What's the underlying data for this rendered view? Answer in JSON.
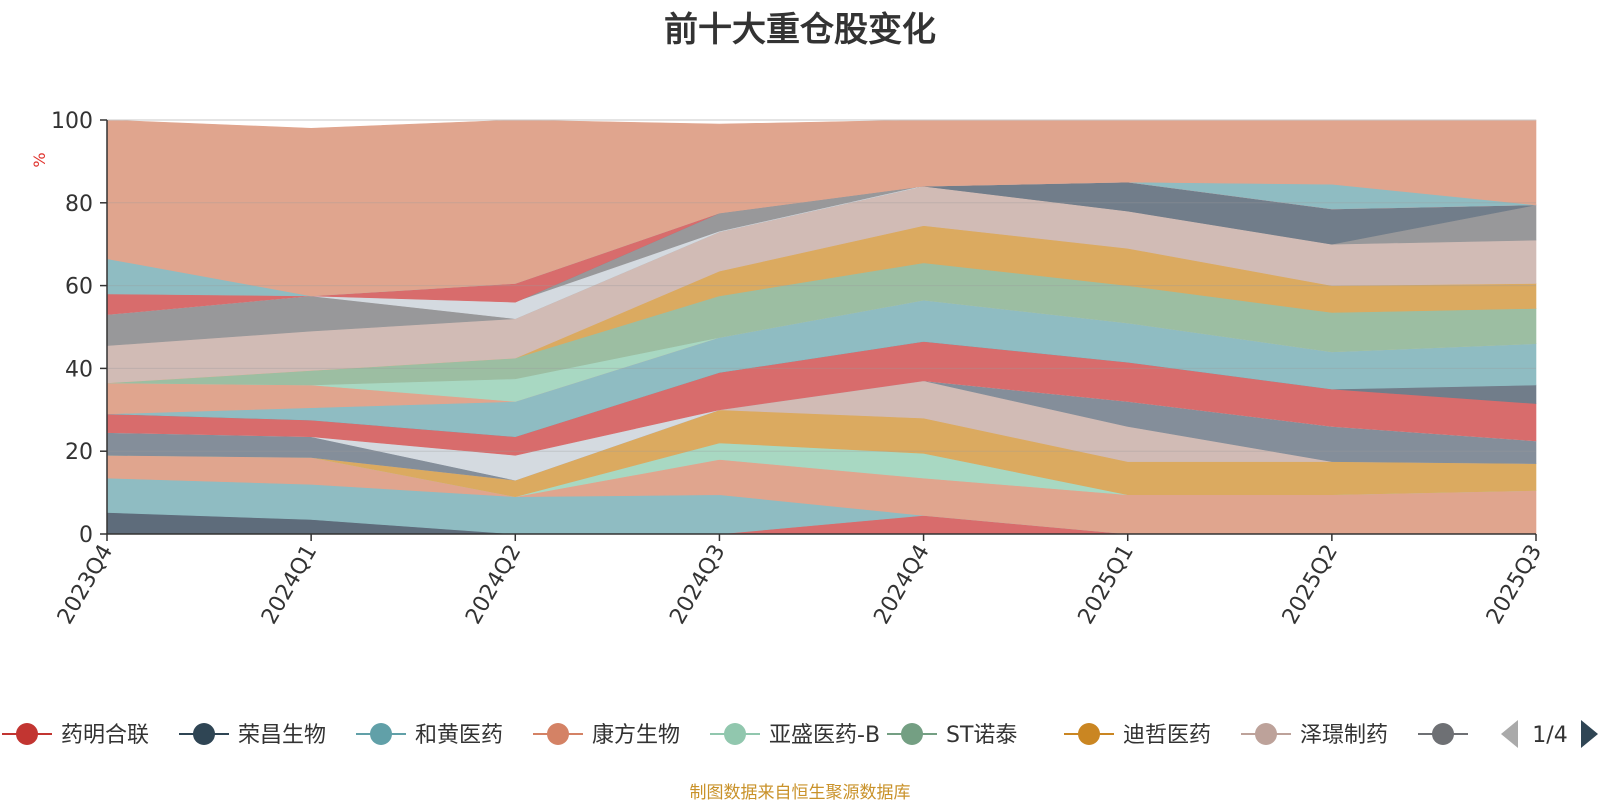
{
  "chart_data": {
    "type": "area",
    "title": "前十大重仓股变化",
    "ylabel": "%",
    "ylim": [
      0,
      100
    ],
    "y_ticks": [
      "0",
      "20",
      "40",
      "60",
      "80",
      "100"
    ],
    "categories": [
      "2023Q4",
      "2024Q1",
      "2024Q2",
      "2024Q3",
      "2024Q4",
      "2025Q1",
      "2025Q2",
      "2025Q3"
    ],
    "bands": [
      {
        "color": "#5e6c7b",
        "lower": [
          0,
          0,
          0,
          0,
          0,
          0,
          0,
          0
        ],
        "upper": [
          5.2,
          3.5,
          0,
          0,
          0,
          0,
          0,
          0
        ]
      },
      {
        "color": "#d86c6c",
        "lower": [
          0,
          0,
          0,
          0,
          0,
          0,
          0,
          0
        ],
        "upper": [
          0,
          0,
          0,
          0,
          4.5,
          0,
          0,
          0
        ]
      },
      {
        "color": "#8fbcc2",
        "lower": [
          5.2,
          3.5,
          0,
          0,
          4.5,
          0,
          0,
          0
        ],
        "upper": [
          13.5,
          12,
          9,
          9.5,
          4.5,
          0,
          0,
          0
        ]
      },
      {
        "color": "#e0a58e",
        "lower": [
          13.5,
          12,
          9,
          9.5,
          4.5,
          0,
          0,
          0
        ],
        "upper": [
          19,
          18.5,
          9,
          18,
          13.5,
          9.5,
          9.5,
          10.5
        ]
      },
      {
        "color": "#a8d8c2",
        "lower": [
          19,
          18.5,
          9,
          18,
          13.5,
          9.5,
          9.5,
          10.5
        ],
        "upper": [
          19,
          18.5,
          9,
          22,
          19.5,
          9.5,
          9.5,
          10.5
        ]
      },
      {
        "color": "#dbaa60",
        "lower": [
          19,
          18.5,
          9,
          22,
          19.5,
          9.5,
          9.5,
          10.5
        ],
        "upper": [
          19,
          18.5,
          13,
          30,
          28,
          17.5,
          17.5,
          17
        ]
      },
      {
        "color": "#d1bbb5",
        "lower": [
          19,
          18.5,
          13,
          30,
          28,
          17.5,
          17.5,
          17
        ],
        "upper": [
          19,
          18.5,
          13,
          30,
          37,
          26,
          17.5,
          17
        ]
      },
      {
        "color": "#848e9a",
        "lower": [
          19,
          18.5,
          13,
          30,
          37,
          26,
          17.5,
          17
        ],
        "upper": [
          24.5,
          23.5,
          13,
          30,
          37,
          32,
          26,
          22.5
        ]
      },
      {
        "color": "#d4dae0",
        "lower": [
          24.5,
          23.5,
          13,
          30,
          37,
          32,
          26,
          22.5
        ],
        "upper": [
          24.5,
          23.5,
          19,
          30,
          37,
          32,
          26,
          22.5
        ]
      },
      {
        "color": "#d86c6c",
        "lower": [
          24.5,
          23.5,
          19,
          30,
          37,
          32,
          26,
          22.5
        ],
        "upper": [
          29,
          27.5,
          23.5,
          39,
          46.5,
          41.5,
          35,
          31.5
        ]
      },
      {
        "color": "#717d8a",
        "lower": [
          29,
          27.5,
          23.5,
          39,
          46.5,
          41.5,
          35,
          31.5
        ],
        "upper": [
          29,
          27.5,
          23.5,
          39,
          46.5,
          41.5,
          35,
          36
        ]
      },
      {
        "color": "#8fbcc2",
        "lower": [
          29,
          27.5,
          23.5,
          39,
          46.5,
          41.5,
          35,
          36
        ],
        "upper": [
          29,
          30.5,
          32,
          47.5,
          56.5,
          51,
          44,
          46
        ]
      },
      {
        "color": "#e0a58e",
        "lower": [
          29,
          30.5,
          32,
          47.5,
          56.5,
          51,
          44,
          46
        ],
        "upper": [
          36.5,
          36,
          32,
          47.5,
          56.5,
          51,
          44,
          46
        ]
      },
      {
        "color": "#a8d8c2",
        "lower": [
          36.5,
          36,
          32,
          47.5,
          56.5,
          51,
          44,
          46
        ],
        "upper": [
          36.5,
          36,
          37.5,
          47.5,
          56.5,
          51,
          44,
          46
        ]
      },
      {
        "color": "#9cbea2",
        "lower": [
          36.5,
          36,
          37.5,
          47.5,
          56.5,
          51,
          44,
          46
        ],
        "upper": [
          36.5,
          39.5,
          42.5,
          57.5,
          65.5,
          60,
          53.5,
          54.5
        ]
      },
      {
        "color": "#dbaa60",
        "lower": [
          36.5,
          39.5,
          42.5,
          57.5,
          65.5,
          60,
          53.5,
          54.5
        ],
        "upper": [
          36.5,
          39.5,
          42.5,
          63.5,
          74.5,
          69,
          60,
          60.5
        ]
      },
      {
        "color": "#d1bbb5",
        "lower": [
          36.5,
          39.5,
          42.5,
          63.5,
          74.5,
          69,
          60,
          60.5
        ],
        "upper": [
          45.5,
          49,
          52,
          73,
          84,
          78,
          70,
          71
        ]
      },
      {
        "color": "#98989a",
        "lower": [
          45.5,
          49,
          52,
          73,
          84,
          78,
          70,
          71
        ],
        "upper": [
          53,
          57.5,
          56,
          77.5,
          84,
          78,
          70,
          79.5
        ]
      },
      {
        "color": "#717d8a",
        "lower": [
          53,
          57.5,
          56,
          77.5,
          84,
          78,
          70,
          79.5
        ],
        "upper": [
          53,
          57.5,
          56,
          77.5,
          84,
          85,
          78.5,
          79.5
        ]
      },
      {
        "color": "#d4dae0",
        "lower": [
          53,
          57.5,
          52,
          73,
          84,
          85,
          78.5,
          79.5
        ],
        "upper": [
          53,
          57.5,
          56,
          73,
          84,
          85,
          78.5,
          79.5
        ]
      },
      {
        "color": "#d86c6c",
        "lower": [
          53,
          57.5,
          56,
          77.5,
          84,
          85,
          78.5,
          79.5
        ],
        "upper": [
          58,
          57.5,
          60.5,
          77.5,
          84,
          85,
          78.5,
          79.5
        ]
      },
      {
        "color": "#8fbcc2",
        "lower": [
          58,
          57.5,
          60.5,
          77.5,
          84,
          85,
          78.5,
          79.5
        ],
        "upper": [
          66.5,
          57.5,
          60.5,
          77.5,
          84,
          85,
          84.5,
          79.5
        ]
      },
      {
        "color": "#e0a58e",
        "lower": [
          66.5,
          57.5,
          60.5,
          77.5,
          84,
          85,
          84.5,
          79.5
        ],
        "upper": [
          100,
          98,
          100,
          99,
          100,
          100,
          100,
          100
        ]
      }
    ],
    "legend": {
      "items": [
        {
          "label": "药明合联",
          "color": "#c23531"
        },
        {
          "label": "荣昌生物",
          "color": "#2f4554"
        },
        {
          "label": "和黄医药",
          "color": "#61a0a8"
        },
        {
          "label": "康方生物",
          "color": "#d48265"
        },
        {
          "label": "亚盛医药-B",
          "color": "#91c7ae"
        },
        {
          "label": "ST诺泰",
          "color": "#749f83"
        },
        {
          "label": "迪哲医药",
          "color": "#ca8622"
        },
        {
          "label": "泽璟制药",
          "color": "#bda29a"
        },
        {
          "label": "",
          "color": "#6e7074"
        }
      ],
      "page": "1/4",
      "prev_color": "#aaaaaa",
      "next_color": "#2f4554"
    }
  },
  "source_note": "制图数据来自恒生聚源数据库",
  "colors": {
    "title": "#333333",
    "axis": "#333333",
    "grid": "#d9d9d9",
    "ylabel": "#e0312c",
    "source": "#c9922a"
  }
}
